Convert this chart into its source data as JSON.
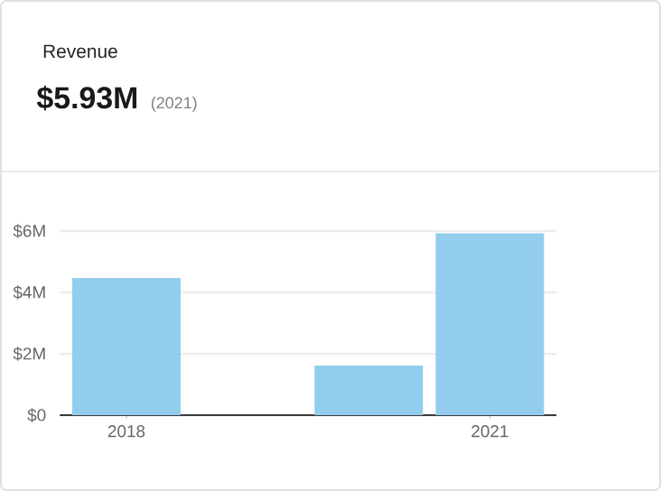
{
  "chart_data": {
    "type": "bar",
    "title": "Revenue",
    "subtitle": "$5.93M",
    "annotations": [
      "(2021)"
    ],
    "categories": [
      "2018",
      null,
      null,
      "2021"
    ],
    "values": [
      4.47,
      null,
      1.62,
      5.93
    ],
    "color": "#92cdee",
    "ylim": [
      0,
      6
    ],
    "yticks": [
      {
        "value": 0,
        "label": "$0"
      },
      {
        "value": 2,
        "label": "$2M"
      },
      {
        "value": 4,
        "label": "$4M"
      },
      {
        "value": 6,
        "label": "$6M"
      }
    ],
    "grid": "y"
  }
}
